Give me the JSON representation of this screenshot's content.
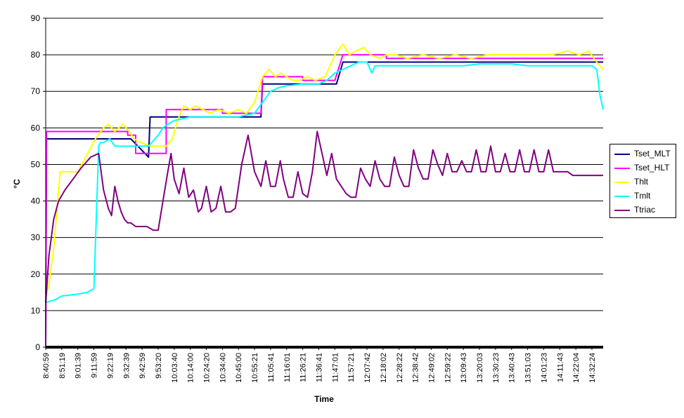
{
  "chart_data": {
    "type": "line",
    "title": "",
    "xlabel": "Time",
    "ylabel": "°C",
    "ylim": [
      0,
      90
    ],
    "y_ticks": [
      0,
      10,
      20,
      30,
      40,
      50,
      60,
      70,
      80,
      90
    ],
    "grid": "horizontal",
    "legend_position": "right",
    "x_tick_labels": [
      "8:40:59",
      "8:51:19",
      "9:01:39",
      "9:11:59",
      "9:22:19",
      "9:32:39",
      "9:42:59",
      "9:53:20",
      "10:03:40",
      "10:14:00",
      "10:24:20",
      "10:34:40",
      "10:45:00",
      "10:55:21",
      "11:05:41",
      "11:16:01",
      "11:26:21",
      "11:36:41",
      "11:47:01",
      "11:57:21",
      "12:07:42",
      "12:18:02",
      "12:28:22",
      "12:38:42",
      "12:49:02",
      "12:59:22",
      "13:09:43",
      "13:20:03",
      "13:30:23",
      "13:40:43",
      "13:51:03",
      "14:01:23",
      "14:11:43",
      "14:22:04",
      "14:32:24"
    ],
    "x_range_index": [
      0,
      34.7
    ],
    "series": [
      {
        "name": "Tset_MLT",
        "color": "#000080",
        "x": [
          0,
          0.05,
          4.5,
          4.6,
          5.2,
          5.3,
          6.4,
          6.5,
          9.7,
          9.8,
          13.4,
          13.5,
          15.8,
          16.1,
          18.1,
          18.5,
          21.3,
          21.5,
          34.7
        ],
        "y": [
          0,
          57,
          57,
          57,
          57,
          57,
          52,
          63,
          63,
          63,
          63,
          72,
          72,
          72,
          72,
          78,
          78,
          78,
          78
        ]
      },
      {
        "name": "Tset_HLT",
        "color": "#FF00FF",
        "x": [
          0,
          0.05,
          5.1,
          5.1,
          5.6,
          5.6,
          6.5,
          6.5,
          7.5,
          7.5,
          11.0,
          11.0,
          13.4,
          13.5,
          16.0,
          16.0,
          18.0,
          18.5,
          21.2,
          21.2,
          34.7
        ],
        "y": [
          0,
          59,
          59,
          58,
          58,
          53,
          53,
          53,
          53,
          65,
          65,
          64,
          64,
          74,
          74,
          73,
          73,
          80,
          80,
          79,
          79
        ]
      },
      {
        "name": "Thlt",
        "color": "#FFFF00",
        "x": [
          0,
          0.2,
          0.5,
          0.9,
          1.5,
          2.0,
          2.5,
          3.1,
          3.6,
          3.9,
          4.3,
          4.8,
          5.2,
          5.5,
          5.9,
          6.5,
          7.0,
          7.5,
          7.9,
          8.2,
          8.6,
          9.0,
          9.3,
          9.8,
          10.2,
          10.8,
          11.4,
          12.0,
          12.5,
          13.0,
          13.5,
          13.9,
          14.3,
          14.6,
          15.0,
          15.4,
          15.8,
          16.3,
          16.8,
          17.4,
          18.0,
          18.5,
          18.9,
          19.3,
          19.8,
          20.2,
          20.8,
          21.2,
          21.8,
          22.5,
          23.5,
          24.5,
          25.5,
          26.5,
          27.5,
          28.5,
          29.5,
          30.5,
          31.5,
          32.5,
          33.2,
          33.8,
          34.3,
          34.7
        ],
        "y": [
          14,
          17,
          27,
          48,
          48,
          48,
          52,
          57,
          60,
          61,
          59,
          61,
          59,
          57,
          56,
          55,
          55,
          55,
          57,
          62,
          66,
          65,
          66,
          65,
          64,
          65,
          64,
          65,
          64,
          67,
          74,
          76,
          74,
          75,
          74,
          73,
          73,
          74,
          73,
          74,
          80,
          83,
          80,
          81,
          82,
          80,
          79,
          80,
          80,
          79,
          80,
          79,
          80,
          79,
          80,
          80,
          80,
          80,
          80,
          81,
          80,
          81,
          78,
          76
        ]
      },
      {
        "name": "Tmlt",
        "color": "#00FFFF",
        "x": [
          0,
          0.2,
          0.6,
          1.0,
          2.0,
          2.6,
          3.0,
          3.3,
          3.4,
          3.6,
          4.0,
          4.3,
          4.5,
          5.0,
          5.4,
          5.7,
          6.4,
          7.0,
          7.3,
          7.6,
          8.0,
          8.5,
          9.0,
          10.0,
          11.0,
          12.0,
          13.0,
          13.5,
          14.0,
          14.5,
          15.0,
          16.0,
          17.0,
          17.5,
          18.0,
          18.5,
          19.0,
          19.5,
          20.0,
          20.3,
          20.5,
          20.9,
          21.3,
          21.5,
          22.0,
          23.0,
          24.0,
          25.0,
          26.0,
          27.0,
          28.0,
          29.0,
          30.0,
          31.0,
          32.0,
          33.0,
          34.0,
          34.3,
          34.5,
          34.7
        ],
        "y": [
          12,
          12.5,
          13,
          14,
          14.5,
          15,
          16,
          55,
          56,
          56,
          57,
          55,
          55,
          55,
          55,
          55,
          55,
          58,
          60,
          61,
          62,
          62.5,
          63,
          63,
          63,
          63,
          64,
          67,
          70,
          71,
          71.5,
          72,
          72,
          73,
          75,
          76,
          77,
          78,
          78,
          75,
          77,
          77,
          77,
          77,
          77,
          77,
          77,
          77,
          77,
          77.5,
          77.5,
          77.5,
          77,
          77,
          77,
          77,
          77,
          76,
          69,
          65
        ]
      },
      {
        "name": "Ttriac",
        "color": "#800080",
        "x": [
          0,
          0.2,
          0.5,
          0.8,
          1.2,
          1.7,
          2.2,
          2.8,
          3.3,
          3.6,
          3.9,
          4.1,
          4.3,
          4.5,
          4.7,
          4.9,
          5.1,
          5.3,
          5.6,
          5.9,
          6.3,
          6.7,
          7.0,
          7.3,
          7.6,
          7.8,
          8.0,
          8.3,
          8.6,
          8.9,
          9.2,
          9.5,
          9.7,
          10.0,
          10.3,
          10.6,
          10.9,
          11.2,
          11.5,
          11.8,
          12.2,
          12.6,
          13.0,
          13.4,
          13.7,
          14.0,
          14.3,
          14.6,
          14.8,
          15.1,
          15.4,
          15.7,
          16.0,
          16.3,
          16.6,
          16.9,
          17.2,
          17.5,
          17.8,
          18.1,
          18.4,
          18.7,
          19.0,
          19.3,
          19.6,
          19.9,
          20.2,
          20.5,
          20.8,
          21.1,
          21.4,
          21.7,
          22.0,
          22.3,
          22.6,
          22.9,
          23.2,
          23.5,
          23.8,
          24.1,
          24.4,
          24.7,
          25.0,
          25.3,
          25.6,
          25.9,
          26.2,
          26.5,
          26.8,
          27.1,
          27.4,
          27.7,
          28.0,
          28.3,
          28.6,
          28.9,
          29.2,
          29.5,
          29.8,
          30.1,
          30.4,
          30.7,
          31.0,
          31.3,
          31.6,
          31.9,
          32.2,
          32.5,
          32.8,
          33.1,
          33.4,
          33.7,
          34.0,
          34.3,
          34.7
        ],
        "y": [
          12,
          25,
          35,
          40,
          43,
          46,
          49,
          52,
          53,
          43,
          38,
          36,
          44,
          40,
          37,
          35,
          34,
          34,
          33,
          33,
          33,
          32,
          32,
          40,
          48,
          53,
          46,
          42,
          49,
          41,
          43,
          37,
          38,
          44,
          37,
          38,
          44,
          37,
          37,
          38,
          50,
          58,
          48,
          44,
          51,
          44,
          44,
          51,
          46,
          41,
          41,
          48,
          42,
          41,
          48,
          59,
          53,
          47,
          53,
          46,
          44,
          42,
          41,
          41,
          49,
          46,
          44,
          51,
          46,
          44,
          44,
          52,
          47,
          44,
          44,
          54,
          49,
          46,
          46,
          54,
          50,
          47,
          53,
          48,
          48,
          51,
          48,
          48,
          54,
          48,
          48,
          55,
          48,
          48,
          53,
          48,
          48,
          54,
          48,
          48,
          54,
          48,
          48,
          54,
          48,
          48,
          48,
          48,
          47,
          47,
          47,
          47,
          47,
          47,
          47
        ]
      }
    ]
  }
}
